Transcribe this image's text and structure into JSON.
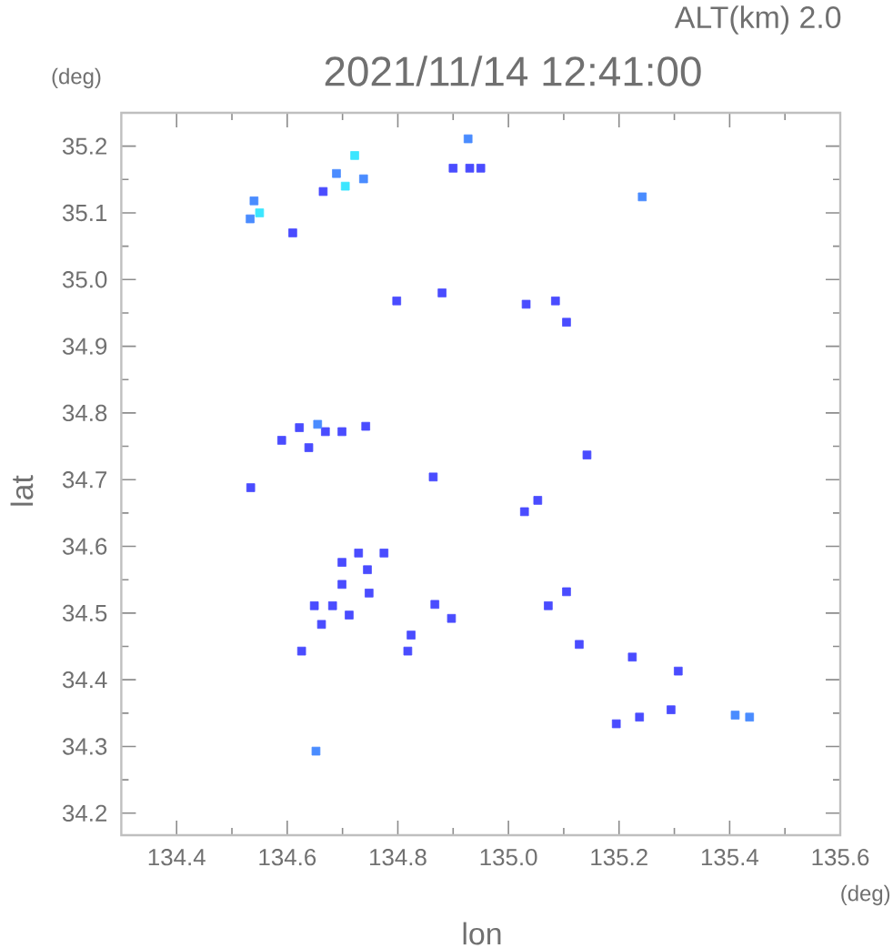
{
  "chart_data": {
    "type": "scatter",
    "title": "2021/11/14 12:41:00",
    "subtitle": "ALT(km) 2.0",
    "xlabel": "lon",
    "ylabel": "lat",
    "annotations": [
      "(deg)",
      "(deg)"
    ],
    "xlim": [
      134.3,
      135.6
    ],
    "ylim": [
      34.167,
      35.25
    ],
    "xticks": [
      {
        "value": 134.4,
        "label": "134.4"
      },
      {
        "value": 134.5,
        "label": null
      },
      {
        "value": 134.6,
        "label": "134.6"
      },
      {
        "value": 134.7,
        "label": null
      },
      {
        "value": 134.8,
        "label": "134.8"
      },
      {
        "value": 134.9,
        "label": null
      },
      {
        "value": 135.0,
        "label": "135.0"
      },
      {
        "value": 135.1,
        "label": null
      },
      {
        "value": 135.2,
        "label": "135.2"
      },
      {
        "value": 135.3,
        "label": null
      },
      {
        "value": 135.4,
        "label": "135.4"
      },
      {
        "value": 135.5,
        "label": null
      },
      {
        "value": 135.6,
        "label": "135.6"
      }
    ],
    "yticks": [
      {
        "value": 34.2,
        "label": "34.2"
      },
      {
        "value": 34.25,
        "label": null
      },
      {
        "value": 34.3,
        "label": "34.3"
      },
      {
        "value": 34.35,
        "label": null
      },
      {
        "value": 34.4,
        "label": "34.4"
      },
      {
        "value": 34.45,
        "label": null
      },
      {
        "value": 34.5,
        "label": "34.5"
      },
      {
        "value": 34.55,
        "label": null
      },
      {
        "value": 34.6,
        "label": "34.6"
      },
      {
        "value": 34.65,
        "label": null
      },
      {
        "value": 34.7,
        "label": "34.7"
      },
      {
        "value": 34.75,
        "label": null
      },
      {
        "value": 34.8,
        "label": "34.8"
      },
      {
        "value": 34.85,
        "label": null
      },
      {
        "value": 34.9,
        "label": "34.9"
      },
      {
        "value": 34.95,
        "label": null
      },
      {
        "value": 35.0,
        "label": "35.0"
      },
      {
        "value": 35.05,
        "label": null
      },
      {
        "value": 35.1,
        "label": "35.1"
      },
      {
        "value": 35.15,
        "label": null
      },
      {
        "value": 35.2,
        "label": "35.2"
      }
    ],
    "grid": false,
    "marker": "square",
    "series": [
      {
        "color": "#4a4cff",
        "x": [
          134.61,
          134.798,
          134.88,
          135.032,
          135.085,
          135.105,
          134.59,
          134.622,
          134.669,
          134.699,
          134.639,
          134.742,
          134.534,
          134.864,
          135.053,
          135.029,
          135.142,
          134.682,
          134.745,
          134.699,
          134.699,
          134.748,
          134.712,
          134.662,
          134.649,
          134.729,
          134.775,
          134.867,
          134.897,
          134.626,
          134.824,
          134.818,
          135.072,
          135.105,
          135.128,
          135.224,
          135.307,
          135.195,
          135.237,
          135.294,
          134.665,
          134.9,
          134.93,
          134.95
        ],
        "values": [
          35.07,
          34.968,
          34.98,
          34.963,
          34.968,
          34.936,
          34.759,
          34.778,
          34.772,
          34.772,
          34.748,
          34.78,
          34.688,
          34.704,
          34.669,
          34.652,
          34.737,
          34.511,
          34.565,
          34.576,
          34.543,
          34.53,
          34.497,
          34.483,
          34.511,
          34.59,
          34.59,
          34.513,
          34.492,
          34.443,
          34.467,
          34.443,
          34.511,
          34.532,
          34.453,
          34.434,
          34.413,
          34.334,
          34.344,
          34.355,
          35.132,
          35.167,
          35.167,
          35.167
        ]
      },
      {
        "color": "#4a8cff",
        "x": [
          134.533,
          134.54,
          134.689,
          134.738,
          134.927,
          135.242,
          134.655,
          134.652,
          135.41,
          135.436
        ],
        "values": [
          35.091,
          35.118,
          35.159,
          35.151,
          35.211,
          35.124,
          34.783,
          34.293,
          34.347,
          34.344
        ]
      },
      {
        "color": "#3ce6ff",
        "x": [
          134.722,
          134.55,
          134.705
        ],
        "values": [
          35.186,
          35.1,
          35.14
        ]
      }
    ]
  }
}
